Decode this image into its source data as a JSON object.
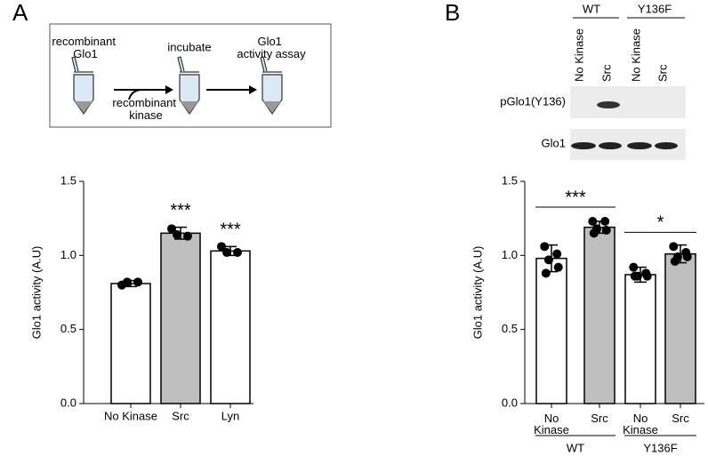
{
  "panels": [
    "A",
    "B"
  ],
  "schematic": {
    "protein": "recombinant Glo1",
    "kinase": "recombinant kinase",
    "step2": "incubate",
    "step3": "Glo1 activity assay"
  },
  "blot": {
    "groups": [
      "WT",
      "Y136F"
    ],
    "lanes": [
      "No Kinase",
      "Src",
      "No Kinase",
      "Src"
    ],
    "rows": [
      "pGlo1(Y136)",
      "Glo1"
    ]
  },
  "chart_data": [
    {
      "type": "bar",
      "ylabel": "Glo1 activity (A.U)",
      "categories": [
        "No Kinase",
        "Src",
        "Lyn"
      ],
      "values": [
        0.81,
        1.15,
        1.03
      ],
      "errors": [
        0.02,
        0.04,
        0.03
      ],
      "points": [
        [
          0.8,
          0.82,
          0.82
        ],
        [
          1.18,
          1.13,
          1.14
        ],
        [
          1.06,
          1.02,
          1.02
        ]
      ],
      "colors": [
        "#ffffff",
        "#bfbfbf",
        "#ffffff"
      ],
      "significance": [
        null,
        "***",
        "***"
      ],
      "ylim": [
        0,
        1.5
      ],
      "yticks": [
        {
          "value": 0,
          "label": "0.0"
        },
        {
          "value": 0.5,
          "label": "0.5"
        },
        {
          "value": 1,
          "label": "1.0"
        },
        {
          "value": 1.5,
          "label": "1.5"
        }
      ]
    },
    {
      "type": "bar",
      "ylabel": "Glo1 activity (A.U)",
      "categories": [
        "No Kinase",
        "Src",
        "No Kinase",
        "Src"
      ],
      "values": [
        0.98,
        1.19,
        0.87,
        1.01
      ],
      "errors": [
        0.09,
        0.04,
        0.05,
        0.06
      ],
      "points": [
        [
          1.06,
          1.01,
          0.97,
          0.92,
          0.88
        ],
        [
          1.23,
          1.23,
          1.18,
          1.17,
          1.15
        ],
        [
          0.92,
          0.88,
          0.86,
          0.86,
          0.86
        ],
        [
          1.06,
          1.02,
          0.99,
          0.99,
          0.96
        ]
      ],
      "colors": [
        "#ffffff",
        "#bfbfbf",
        "#ffffff",
        "#bfbfbf"
      ],
      "groups": [
        {
          "name": "WT",
          "significance": "***"
        },
        {
          "name": "Y136F",
          "significance": "*"
        }
      ],
      "ylim": [
        0,
        1.5
      ],
      "yticks": [
        {
          "value": 0,
          "label": "0.0"
        },
        {
          "value": 0.5,
          "label": "0.5"
        },
        {
          "value": 1,
          "label": "1.0"
        },
        {
          "value": 1.5,
          "label": "1.5"
        }
      ]
    }
  ]
}
